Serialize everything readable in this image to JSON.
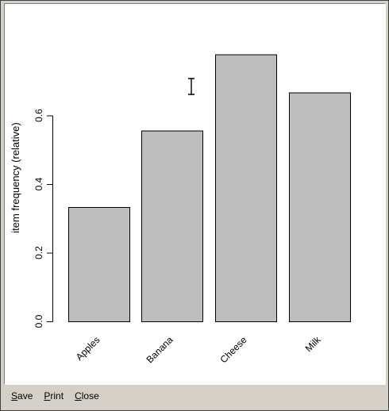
{
  "toolbar": {
    "save_label": "Save",
    "print_label": "Print",
    "close_label": "Close"
  },
  "chart_data": {
    "type": "bar",
    "categories": [
      "Apples",
      "Banana",
      "Cheese",
      "Milk"
    ],
    "values": [
      0.333,
      0.556,
      0.778,
      0.667
    ],
    "ylabel": "item frequency (relative)",
    "xlabel": "",
    "title": "",
    "ylim": [
      0,
      0.8
    ],
    "yticks": [
      0.0,
      0.2,
      0.4,
      0.6
    ],
    "ytick_labels": [
      "0.0",
      "0.2",
      "0.4",
      "0.6"
    ],
    "grid": false,
    "bar_color": "#bebebe",
    "bar_edge_color": "#000000"
  },
  "icons": {
    "cursor": "i-beam-cursor-icon"
  }
}
